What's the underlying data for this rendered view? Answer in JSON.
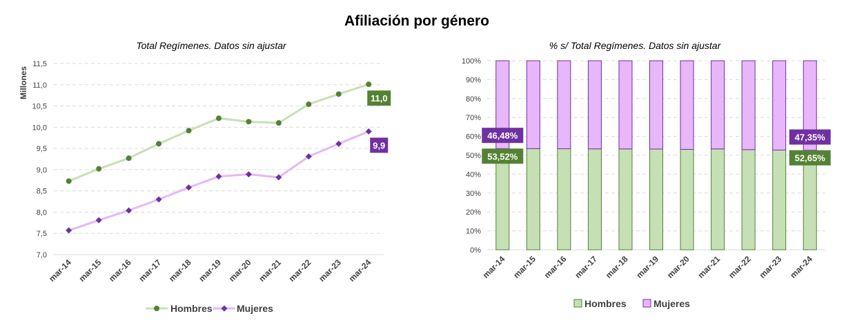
{
  "title": "Afiliación por género",
  "colors": {
    "hombres_line": "#c5e0b4",
    "hombres_marker": "#538135",
    "hombres_label_bg": "#548235",
    "mujeres_line": "#e3b8f7",
    "mujeres_marker": "#7030a0",
    "mujeres_label_bg": "#7030a0",
    "hombres_bar": "#c5e0b4",
    "hombres_bar_border": "#538135",
    "mujeres_bar": "#e7b6fb",
    "mujeres_bar_border": "#7030a0",
    "grid": "#d9d9d9"
  },
  "chart_data": [
    {
      "type": "line",
      "title": "Total Regímenes. Datos sin ajustar",
      "ylabel": "Millones",
      "categories": [
        "mar-14",
        "mar-15",
        "mar-16",
        "mar-17",
        "mar-18",
        "mar-19",
        "mar-20",
        "mar-21",
        "mar-22",
        "mar-23",
        "mar-24"
      ],
      "ylim": [
        7.0,
        11.5
      ],
      "yticks": [
        "7,0",
        "7,5",
        "8,0",
        "8,5",
        "9,0",
        "9,5",
        "10,0",
        "10,5",
        "11,0",
        "11,5"
      ],
      "grid": true,
      "legend": "bottom",
      "series": [
        {
          "name": "Hombres",
          "values": [
            8.73,
            9.02,
            9.27,
            9.61,
            9.92,
            10.21,
            10.13,
            10.1,
            10.54,
            10.78,
            11.01
          ],
          "end_label": "11,0"
        },
        {
          "name": "Mujeres",
          "values": [
            7.57,
            7.81,
            8.04,
            8.3,
            8.58,
            8.84,
            8.89,
            8.82,
            9.31,
            9.61,
            9.9
          ],
          "end_label": "9,9"
        }
      ]
    },
    {
      "type": "bar",
      "stacked": true,
      "title": "% s/ Total Regímenes. Datos sin ajustar",
      "categories": [
        "mar-14",
        "mar-15",
        "mar-16",
        "mar-17",
        "mar-18",
        "mar-19",
        "mar-20",
        "mar-21",
        "mar-22",
        "mar-23",
        "mar-24"
      ],
      "ylim": [
        0,
        100
      ],
      "yticks": [
        "0%",
        "10%",
        "20%",
        "30%",
        "40%",
        "50%",
        "60%",
        "70%",
        "80%",
        "90%",
        "100%"
      ],
      "grid": true,
      "legend": "bottom",
      "series": [
        {
          "name": "Hombres",
          "values": [
            53.52,
            53.5,
            53.45,
            53.38,
            53.35,
            53.3,
            53.1,
            53.35,
            52.95,
            52.75,
            52.65
          ]
        },
        {
          "name": "Mujeres",
          "values": [
            46.48,
            46.5,
            46.55,
            46.62,
            46.65,
            46.7,
            46.9,
            46.65,
            47.05,
            47.25,
            47.35
          ]
        }
      ],
      "data_labels": [
        {
          "series": "Hombres",
          "category": "mar-14",
          "text": "53,52%"
        },
        {
          "series": "Mujeres",
          "category": "mar-14",
          "text": "46,48%"
        },
        {
          "series": "Hombres",
          "category": "mar-24",
          "text": "52,65%"
        },
        {
          "series": "Mujeres",
          "category": "mar-24",
          "text": "47,35%"
        }
      ]
    }
  ]
}
